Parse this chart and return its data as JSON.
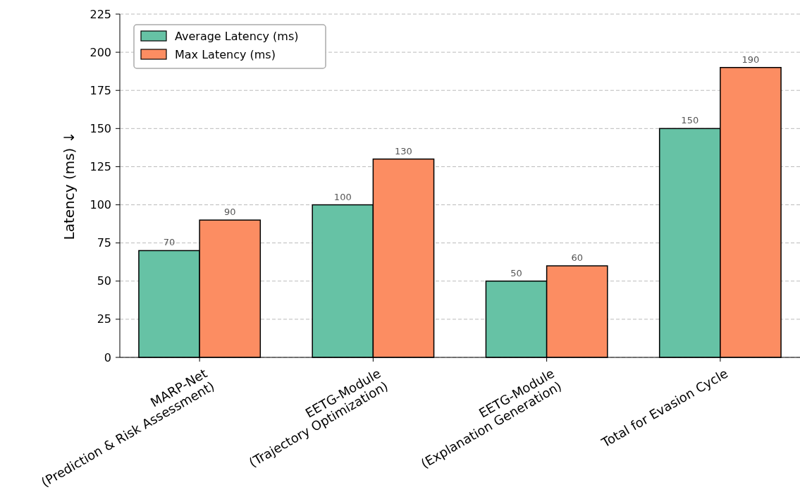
{
  "chart_data": {
    "type": "bar",
    "ylabel": "Latency (ms) ↓",
    "categories": [
      "MARP-Net\n(Prediction & Risk Assessment)",
      "EETG-Module\n(Trajectory Optimization)",
      "EETG-Module\n(Explanation Generation)",
      "Total for Evasion Cycle"
    ],
    "series": [
      {
        "name": "Average Latency (ms)",
        "color": "#66c2a5",
        "values": [
          70,
          100,
          50,
          150
        ]
      },
      {
        "name": "Max Latency (ms)",
        "color": "#fc8d62",
        "values": [
          90,
          130,
          60,
          190
        ]
      }
    ],
    "ylim": [
      0,
      225
    ],
    "yticks": [
      0,
      25,
      50,
      75,
      100,
      125,
      150,
      175,
      200,
      225
    ],
    "grid": "y",
    "legend": "top left",
    "data_labels": true
  }
}
